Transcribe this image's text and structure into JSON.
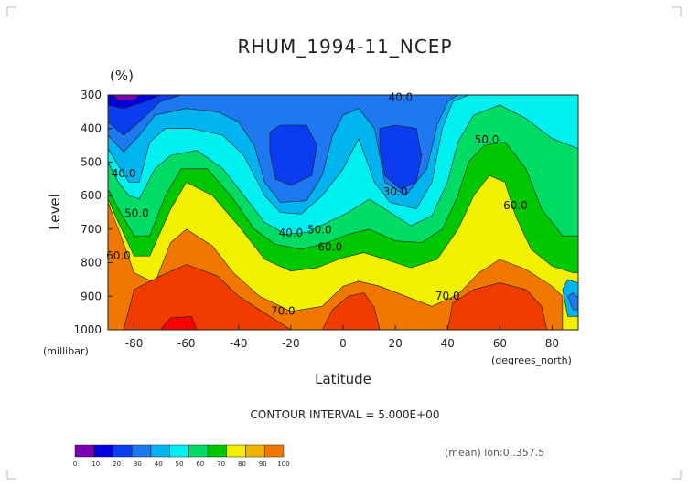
{
  "chart_data": {
    "type": "heatmap",
    "title": "RHUM_1994-11_NCEP",
    "units_label": "(%)",
    "xlabel": "Latitude",
    "ylabel": "Level",
    "x_unit": "(degrees_north)",
    "y_unit": "(millibar)",
    "xlim": [
      -90,
      90
    ],
    "ylim": [
      1000,
      300
    ],
    "x_ticks": [
      "-80",
      "-60",
      "-40",
      "-20",
      "0",
      "20",
      "40",
      "60",
      "80"
    ],
    "x_tick_values": [
      -80,
      -60,
      -40,
      -20,
      0,
      20,
      40,
      60,
      80
    ],
    "y_ticks": [
      "300",
      "400",
      "500",
      "600",
      "700",
      "800",
      "900",
      "1000"
    ],
    "y_tick_values": [
      300,
      400,
      500,
      600,
      700,
      800,
      900,
      1000
    ],
    "contour_interval_text": "CONTOUR INTERVAL = 5.000E+00",
    "mean_note": "(mean) lon:0..357.5",
    "colorbar": {
      "ticks": [
        "0",
        "10",
        "20",
        "30",
        "40",
        "50",
        "60",
        "70",
        "80",
        "90",
        "100"
      ],
      "colors": [
        "#7a00b0",
        "#0000dc",
        "#0a3cf0",
        "#1e78f0",
        "#00b4f0",
        "#00f0f0",
        "#00dc64",
        "#00c800",
        "#f0f000",
        "#f0b400",
        "#f07800",
        "#f03c00",
        "#ff0000"
      ]
    },
    "contour_labels": [
      {
        "text": "40.0",
        "lat": 22,
        "p": 318
      },
      {
        "text": "50.0",
        "lat": 55,
        "p": 445
      },
      {
        "text": "40.0",
        "lat": -84,
        "p": 545
      },
      {
        "text": "30.0",
        "lat": 20,
        "p": 600
      },
      {
        "text": "60.0",
        "lat": 66,
        "p": 640
      },
      {
        "text": "50.0",
        "lat": -79,
        "p": 663
      },
      {
        "text": "40.0",
        "lat": -20,
        "p": 722
      },
      {
        "text": "50.0",
        "lat": -9,
        "p": 712
      },
      {
        "text": "60.0",
        "lat": -5,
        "p": 765
      },
      {
        "text": "60.0",
        "lat": -86,
        "p": 790
      },
      {
        "text": "70.0",
        "lat": -23,
        "p": 955
      },
      {
        "text": "70.0",
        "lat": 40,
        "p": 910
      }
    ]
  }
}
